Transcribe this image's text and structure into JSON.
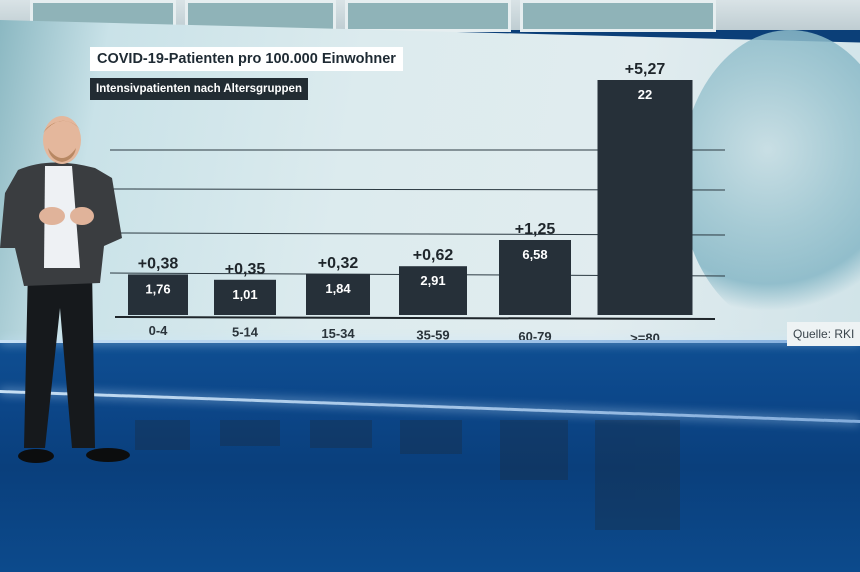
{
  "chart_data": {
    "type": "bar",
    "title": "COVID-19-Patienten pro 100.000 Einwohner",
    "subtitle": "Intensivpatienten nach Altersgruppen",
    "categories": [
      "0-4",
      "5-14",
      "15-34",
      "35-59",
      "60-79",
      ">=80"
    ],
    "values": [
      1.76,
      1.01,
      1.84,
      2.91,
      6.58,
      22
    ],
    "value_labels": [
      "1,76",
      "1,01",
      "1,84",
      "2,91",
      "6,58",
      "22"
    ],
    "deltas": [
      "+0,38",
      "+0,35",
      "+0,32",
      "+0,62",
      "+1,25",
      "+5,27"
    ],
    "grid": true,
    "source": "Quelle: RKI",
    "colors": {
      "bar": "#263039",
      "title_bg": "#ffffff",
      "subtitle_bg": "#222c33"
    }
  }
}
